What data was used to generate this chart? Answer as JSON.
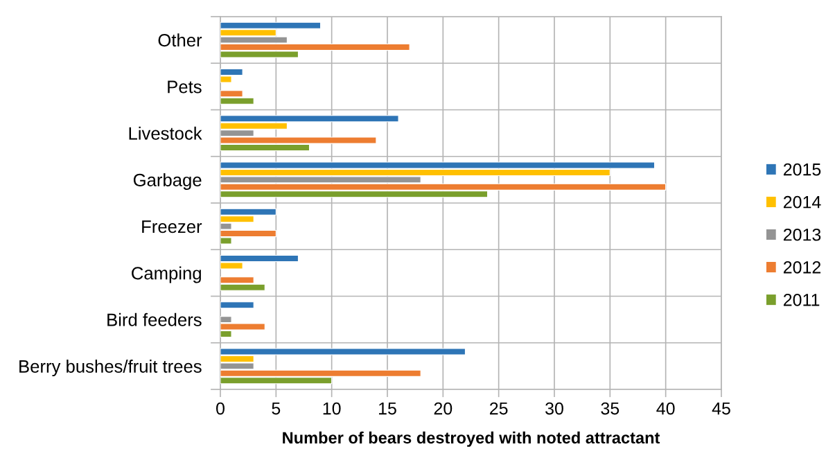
{
  "chart_data": {
    "type": "bar",
    "orientation": "horizontal",
    "xlabel": "Number of bears destroyed with noted attractant",
    "categories": [
      "Other",
      "Pets",
      "Livestock",
      "Garbage",
      "Freezer",
      "Camping",
      "Bird feeders",
      "Berry bushes/fruit trees"
    ],
    "series": [
      {
        "name": "2015",
        "color": "#2e75b6",
        "values": [
          9,
          2,
          16,
          39,
          5,
          7,
          3,
          22
        ]
      },
      {
        "name": "2014",
        "color": "#ffc000",
        "values": [
          5,
          1,
          6,
          35,
          3,
          2,
          null,
          3
        ]
      },
      {
        "name": "2013",
        "color": "#949494",
        "values": [
          6,
          null,
          3,
          18,
          1,
          null,
          1,
          3
        ]
      },
      {
        "name": "2012",
        "color": "#ed7d31",
        "values": [
          17,
          2,
          14,
          40,
          5,
          3,
          4,
          18
        ]
      },
      {
        "name": "2011",
        "color": "#7a9f2c",
        "values": [
          7,
          3,
          8,
          24,
          1,
          4,
          1,
          10
        ]
      }
    ],
    "xlim": [
      0,
      45
    ],
    "xticks": [
      0,
      5,
      10,
      15,
      20,
      25,
      30,
      35,
      40,
      45
    ],
    "grid": true,
    "legend": "right"
  }
}
